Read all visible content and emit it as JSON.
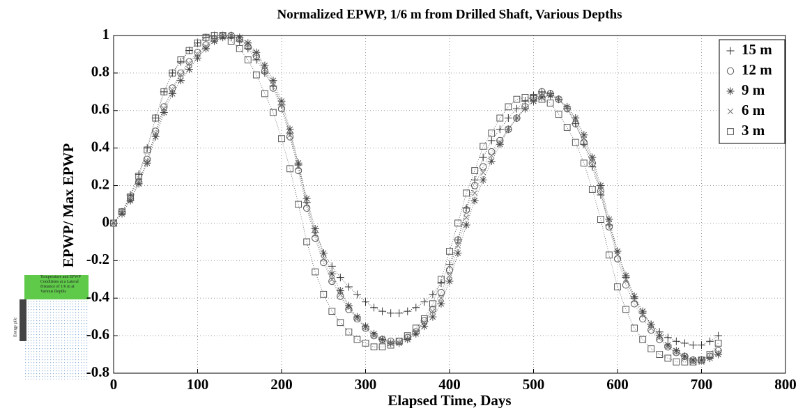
{
  "chart_data": {
    "type": "scatter",
    "title": "Normalized EPWP, 1/6 m from Drilled Shaft, Various Depths",
    "x_label": "Elapsed Time, Days",
    "y_label": "EPWP/ Max EPWP",
    "x": [
      0,
      10,
      20,
      30,
      40,
      50,
      60,
      70,
      80,
      90,
      100,
      110,
      120,
      130,
      140,
      150,
      160,
      170,
      180,
      190,
      200,
      210,
      220,
      230,
      240,
      250,
      260,
      270,
      280,
      290,
      300,
      310,
      320,
      330,
      340,
      350,
      360,
      370,
      380,
      390,
      400,
      410,
      420,
      430,
      440,
      450,
      460,
      470,
      480,
      490,
      500,
      510,
      520,
      530,
      540,
      550,
      560,
      570,
      580,
      590,
      600,
      610,
      620,
      630,
      640,
      650,
      660,
      670,
      680,
      690,
      700,
      710,
      720
    ],
    "series": [
      {
        "name": "15 m",
        "color": "#333333",
        "marker": "plus",
        "values": [
          0,
          0.06,
          0.15,
          0.26,
          0.4,
          0.56,
          0.7,
          0.8,
          0.86,
          0.92,
          0.96,
          0.99,
          1.0,
          1.0,
          0.99,
          0.97,
          0.93,
          0.87,
          0.8,
          0.73,
          0.63,
          0.48,
          0.31,
          0.11,
          -0.05,
          -0.16,
          -0.23,
          -0.29,
          -0.34,
          -0.38,
          -0.42,
          -0.45,
          -0.47,
          -0.48,
          -0.48,
          -0.47,
          -0.45,
          -0.42,
          -0.38,
          -0.32,
          -0.22,
          -0.09,
          0.08,
          0.23,
          0.35,
          0.44,
          0.5,
          0.56,
          0.61,
          0.65,
          0.68,
          0.7,
          0.69,
          0.66,
          0.61,
          0.53,
          0.42,
          0.3,
          0.15,
          -0.01,
          -0.15,
          -0.29,
          -0.4,
          -0.48,
          -0.54,
          -0.58,
          -0.61,
          -0.63,
          -0.64,
          -0.65,
          -0.65,
          -0.63,
          -0.6
        ]
      },
      {
        "name": "12 m",
        "color": "#555555",
        "marker": "circle",
        "values": [
          0,
          0.06,
          0.13,
          0.22,
          0.34,
          0.49,
          0.62,
          0.72,
          0.8,
          0.86,
          0.91,
          0.95,
          0.98,
          1.0,
          1.0,
          0.98,
          0.94,
          0.89,
          0.81,
          0.72,
          0.61,
          0.46,
          0.28,
          0.08,
          -0.08,
          -0.21,
          -0.31,
          -0.39,
          -0.46,
          -0.51,
          -0.56,
          -0.6,
          -0.62,
          -0.63,
          -0.63,
          -0.61,
          -0.58,
          -0.52,
          -0.46,
          -0.37,
          -0.25,
          -0.09,
          0.07,
          0.2,
          0.3,
          0.38,
          0.44,
          0.5,
          0.56,
          0.62,
          0.67,
          0.7,
          0.69,
          0.66,
          0.61,
          0.53,
          0.43,
          0.32,
          0.17,
          -0.02,
          -0.19,
          -0.33,
          -0.43,
          -0.51,
          -0.57,
          -0.62,
          -0.66,
          -0.69,
          -0.71,
          -0.73,
          -0.73,
          -0.71,
          -0.68
        ]
      },
      {
        "name": "9 m",
        "color": "#444444",
        "marker": "asterisk",
        "values": [
          0,
          0.05,
          0.12,
          0.21,
          0.32,
          0.46,
          0.59,
          0.69,
          0.76,
          0.82,
          0.88,
          0.93,
          0.97,
          0.99,
          1.0,
          0.99,
          0.96,
          0.91,
          0.84,
          0.76,
          0.65,
          0.5,
          0.32,
          0.13,
          -0.03,
          -0.16,
          -0.27,
          -0.36,
          -0.44,
          -0.5,
          -0.55,
          -0.59,
          -0.62,
          -0.64,
          -0.64,
          -0.62,
          -0.59,
          -0.55,
          -0.5,
          -0.43,
          -0.31,
          -0.16,
          -0.01,
          0.12,
          0.23,
          0.33,
          0.42,
          0.5,
          0.56,
          0.61,
          0.65,
          0.67,
          0.68,
          0.66,
          0.62,
          0.56,
          0.47,
          0.35,
          0.2,
          0.02,
          -0.15,
          -0.28,
          -0.39,
          -0.47,
          -0.54,
          -0.6,
          -0.65,
          -0.68,
          -0.71,
          -0.73,
          -0.73,
          -0.72,
          -0.7
        ]
      },
      {
        "name": "6 m",
        "color": "#777777",
        "marker": "x",
        "values": [
          0,
          0.06,
          0.13,
          0.22,
          0.33,
          0.48,
          0.61,
          0.71,
          0.79,
          0.85,
          0.9,
          0.94,
          0.98,
          1.0,
          1.0,
          0.98,
          0.95,
          0.9,
          0.82,
          0.74,
          0.63,
          0.47,
          0.3,
          0.1,
          -0.06,
          -0.19,
          -0.3,
          -0.38,
          -0.45,
          -0.51,
          -0.56,
          -0.6,
          -0.63,
          -0.64,
          -0.64,
          -0.62,
          -0.58,
          -0.53,
          -0.47,
          -0.4,
          -0.28,
          -0.12,
          0.03,
          0.16,
          0.27,
          0.36,
          0.43,
          0.5,
          0.56,
          0.61,
          0.66,
          0.69,
          0.69,
          0.66,
          0.62,
          0.55,
          0.45,
          0.33,
          0.18,
          0.0,
          -0.17,
          -0.3,
          -0.41,
          -0.49,
          -0.56,
          -0.61,
          -0.66,
          -0.69,
          -0.72,
          -0.74,
          -0.74,
          -0.72,
          -0.69
        ]
      },
      {
        "name": "3 m",
        "color": "#555555",
        "marker": "square",
        "values": [
          0,
          0.06,
          0.14,
          0.25,
          0.39,
          0.56,
          0.7,
          0.8,
          0.87,
          0.92,
          0.96,
          0.99,
          1.0,
          1.0,
          0.97,
          0.93,
          0.87,
          0.79,
          0.69,
          0.59,
          0.45,
          0.29,
          0.1,
          -0.1,
          -0.26,
          -0.38,
          -0.47,
          -0.53,
          -0.58,
          -0.62,
          -0.64,
          -0.66,
          -0.66,
          -0.65,
          -0.63,
          -0.6,
          -0.56,
          -0.51,
          -0.43,
          -0.3,
          -0.15,
          0.0,
          0.16,
          0.28,
          0.41,
          0.48,
          0.56,
          0.62,
          0.66,
          0.67,
          0.67,
          0.66,
          0.64,
          0.58,
          0.51,
          0.43,
          0.32,
          0.18,
          0.02,
          -0.17,
          -0.34,
          -0.46,
          -0.56,
          -0.62,
          -0.67,
          -0.7,
          -0.72,
          -0.74,
          -0.74,
          -0.74,
          -0.73,
          -0.7,
          -0.64
        ]
      }
    ],
    "xlim": [
      0,
      800
    ],
    "xticks": [
      0,
      100,
      200,
      300,
      400,
      500,
      600,
      700,
      800
    ],
    "ylim": [
      -0.8,
      1
    ],
    "yticks": [
      -0.8,
      -0.6,
      -0.4,
      -0.2,
      0,
      0.2,
      0.4,
      0.6,
      0.8,
      1
    ],
    "grid": true,
    "line_style": "dotted",
    "legend": "upper right"
  },
  "inset": {
    "caption": "Temperature and EPWP Conditions at a Lateral Distance of 1/6 m at Various Depths",
    "pile_label": "Energy pile"
  }
}
